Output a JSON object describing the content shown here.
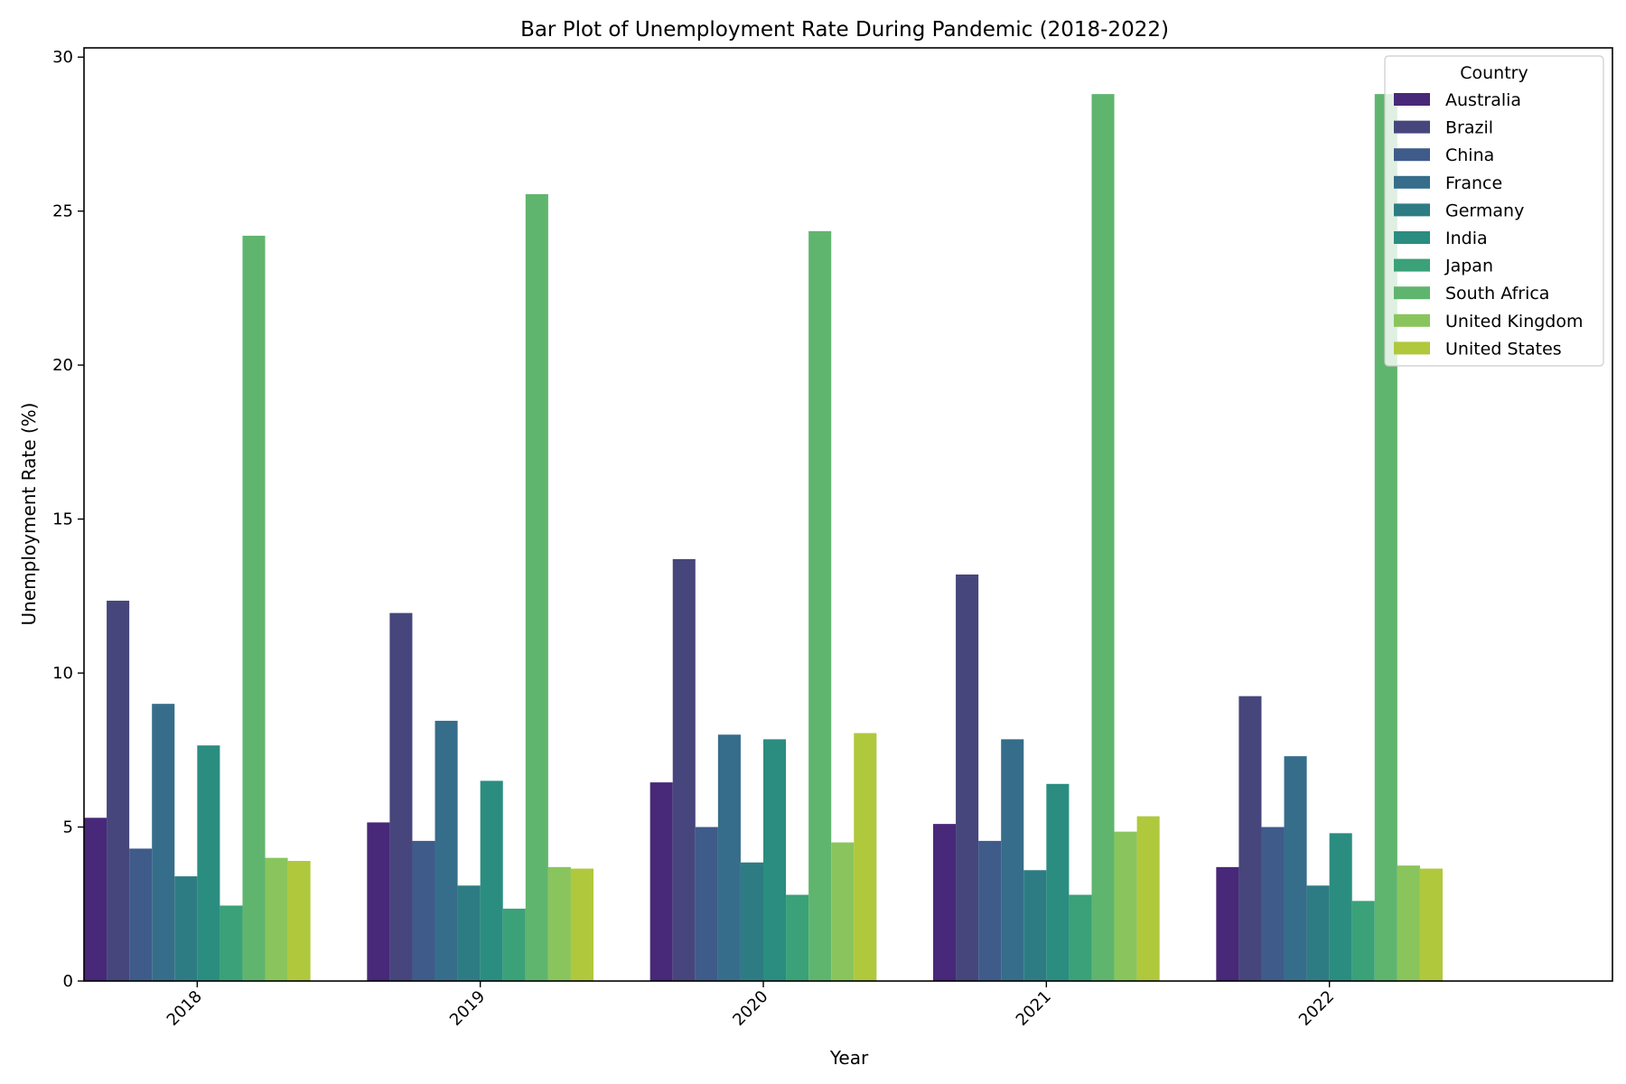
{
  "chart_data": {
    "type": "bar",
    "title": "Bar Plot of Unemployment Rate During Pandemic (2018-2022)",
    "xlabel": "Year",
    "ylabel": "Unemployment Rate (%)",
    "categories": [
      "2018",
      "2019",
      "2020",
      "2021",
      "2022"
    ],
    "ylim": [
      0,
      30.3
    ],
    "yticks": [
      "0",
      "5",
      "10",
      "15",
      "20",
      "25",
      "30"
    ],
    "grid": false,
    "legend": {
      "title": "Country",
      "placement": "top-right"
    },
    "series": [
      {
        "name": "Australia",
        "color": "#482878",
        "values": [
          5.3,
          5.15,
          6.45,
          5.1,
          3.7
        ]
      },
      {
        "name": "Brazil",
        "color": "#46467c",
        "values": [
          12.35,
          11.95,
          13.7,
          13.2,
          9.25
        ]
      },
      {
        "name": "China",
        "color": "#3e5b8a",
        "values": [
          4.3,
          4.55,
          5.0,
          4.55,
          5.0
        ]
      },
      {
        "name": "France",
        "color": "#366d8a",
        "values": [
          9.0,
          8.45,
          8.0,
          7.85,
          7.3
        ]
      },
      {
        "name": "Germany",
        "color": "#2e7c83",
        "values": [
          3.4,
          3.1,
          3.85,
          3.6,
          3.1
        ]
      },
      {
        "name": "India",
        "color": "#2a8d80",
        "values": [
          7.65,
          6.5,
          7.85,
          6.4,
          4.8
        ]
      },
      {
        "name": "Japan",
        "color": "#3aa178",
        "values": [
          2.45,
          2.35,
          2.8,
          2.8,
          2.6
        ]
      },
      {
        "name": "South Africa",
        "color": "#60b56e",
        "values": [
          24.2,
          25.55,
          24.35,
          28.8,
          28.8
        ]
      },
      {
        "name": "United Kingdom",
        "color": "#89c55c",
        "values": [
          4.0,
          3.7,
          4.5,
          4.85,
          3.75
        ]
      },
      {
        "name": "United States",
        "color": "#b0c83c",
        "values": [
          3.9,
          3.65,
          8.05,
          5.35,
          3.65
        ]
      }
    ]
  }
}
